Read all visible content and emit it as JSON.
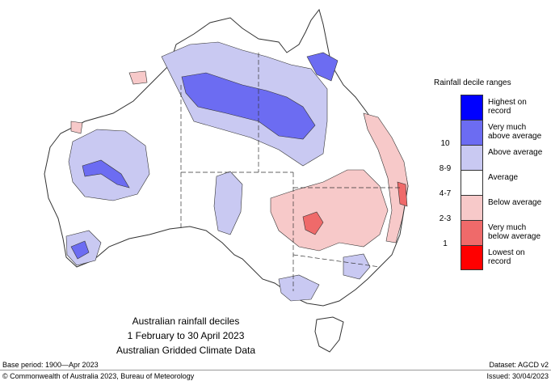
{
  "map": {
    "title_lines": [
      "Australian rainfall deciles",
      "1 February to 30 April 2023",
      "Australian Gridded Climate Data"
    ],
    "legend_title": "Rainfall decile ranges",
    "legend": [
      {
        "label": "Highest on record",
        "decile": "",
        "color": "#0000ff"
      },
      {
        "label": "Very much above average",
        "decile": "10",
        "color": "#6c6cf2"
      },
      {
        "label": "Above average",
        "decile": "8-9",
        "color": "#c9c9f2"
      },
      {
        "label": "Average",
        "decile": "4-7",
        "color": "#ffffff"
      },
      {
        "label": "Below average",
        "decile": "2-3",
        "color": "#f7c9c9"
      },
      {
        "label": "Very much below average",
        "decile": "1",
        "color": "#ef6a6a"
      },
      {
        "label": "Lowest on record",
        "decile": "",
        "color": "#ff0000"
      }
    ]
  },
  "footer": {
    "base_period": "Base period: 1900—Apr 2023",
    "copyright": "© Commonwealth of Australia 2023, Bureau of Meteorology",
    "dataset": "Dataset: AGCD v2",
    "issued": "Issued: 30/04/2023"
  }
}
